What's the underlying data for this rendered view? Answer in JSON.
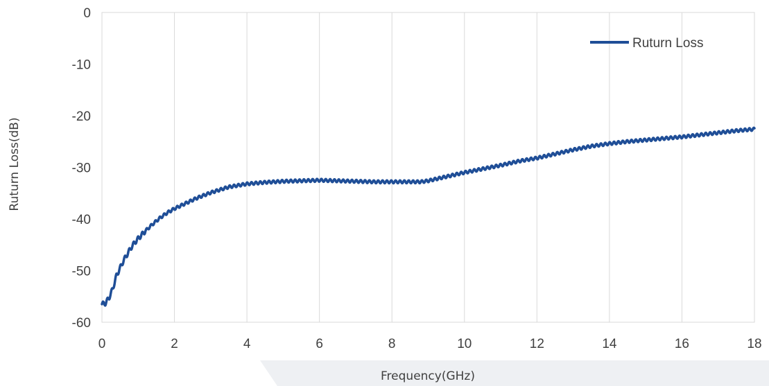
{
  "chart_data": {
    "type": "line",
    "xlabel": "Frequency(GHz)",
    "ylabel": "Ruturn Loss(dB)",
    "xlim": [
      0,
      18
    ],
    "ylim": [
      -60,
      0
    ],
    "xticks": [
      "0",
      "2",
      "4",
      "6",
      "8",
      "10",
      "12",
      "14",
      "16",
      "18"
    ],
    "yticks": [
      "0",
      "-10",
      "-20",
      "-30",
      "-40",
      "-50",
      "-60"
    ],
    "grid": "vertical",
    "legend_position": "top-right",
    "series": [
      {
        "name": "Ruturn Loss",
        "color": "#1f4e97",
        "x": [
          0,
          0.1,
          0.2,
          0.3,
          0.4,
          0.5,
          0.6,
          0.7,
          0.8,
          0.9,
          1.0,
          1.2,
          1.4,
          1.6,
          1.8,
          2.0,
          2.3,
          2.6,
          3.0,
          3.5,
          4.0,
          4.5,
          5.0,
          5.5,
          6.0,
          6.5,
          7.0,
          7.5,
          8.0,
          8.5,
          8.8,
          9.0,
          9.5,
          10.0,
          10.5,
          11.0,
          11.5,
          12.0,
          12.5,
          13.0,
          13.5,
          14.0,
          14.5,
          15.0,
          15.5,
          16.0,
          16.5,
          17.0,
          17.5,
          18.0
        ],
        "y": [
          -56.5,
          -56.3,
          -55.2,
          -53.5,
          -51.0,
          -49.5,
          -48.0,
          -46.8,
          -45.6,
          -44.6,
          -43.8,
          -42.3,
          -41.0,
          -39.8,
          -38.8,
          -38.0,
          -37.0,
          -36.0,
          -34.9,
          -33.8,
          -33.2,
          -32.9,
          -32.7,
          -32.6,
          -32.5,
          -32.6,
          -32.7,
          -32.8,
          -32.8,
          -32.8,
          -32.8,
          -32.6,
          -31.8,
          -31.0,
          -30.3,
          -29.6,
          -28.8,
          -28.2,
          -27.4,
          -26.6,
          -25.9,
          -25.4,
          -25.0,
          -24.7,
          -24.4,
          -24.1,
          -23.7,
          -23.3,
          -22.9,
          -22.6
        ]
      }
    ]
  }
}
